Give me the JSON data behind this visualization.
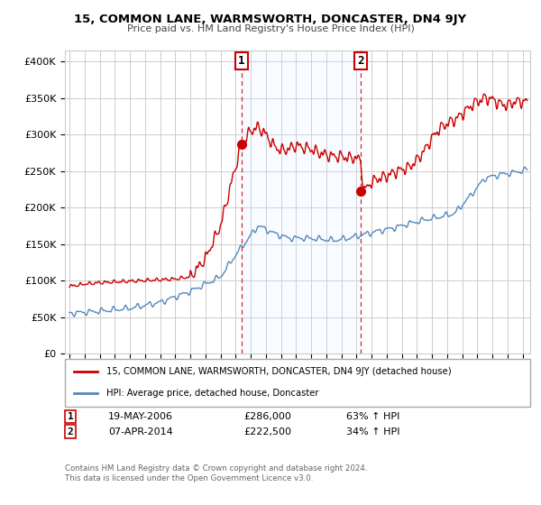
{
  "title": "15, COMMON LANE, WARMSWORTH, DONCASTER, DN4 9JY",
  "subtitle": "Price paid vs. HM Land Registry's House Price Index (HPI)",
  "ylabel_ticks": [
    "£0",
    "£50K",
    "£100K",
    "£150K",
    "£200K",
    "£250K",
    "£300K",
    "£350K",
    "£400K"
  ],
  "ytick_values": [
    0,
    50000,
    100000,
    150000,
    200000,
    250000,
    300000,
    350000,
    400000
  ],
  "ylim": [
    0,
    415000
  ],
  "xlim_start": 1994.7,
  "xlim_end": 2025.5,
  "sale1_x": 2006.38,
  "sale1_y": 286000,
  "sale1_label": "1",
  "sale1_date": "19-MAY-2006",
  "sale1_price": "£286,000",
  "sale1_hpi": "63% ↑ HPI",
  "sale2_x": 2014.27,
  "sale2_y": 222500,
  "sale2_label": "2",
  "sale2_date": "07-APR-2014",
  "sale2_price": "£222,500",
  "sale2_hpi": "34% ↑ HPI",
  "line_color_red": "#cc0000",
  "line_color_blue": "#5588bb",
  "shade_color": "#ddeeff",
  "grid_color": "#cccccc",
  "background_color": "#ffffff",
  "legend_label_red": "15, COMMON LANE, WARMSWORTH, DONCASTER, DN4 9JY (detached house)",
  "legend_label_blue": "HPI: Average price, detached house, Doncaster",
  "footer1": "Contains HM Land Registry data © Crown copyright and database right 2024.",
  "footer2": "This data is licensed under the Open Government Licence v3.0."
}
